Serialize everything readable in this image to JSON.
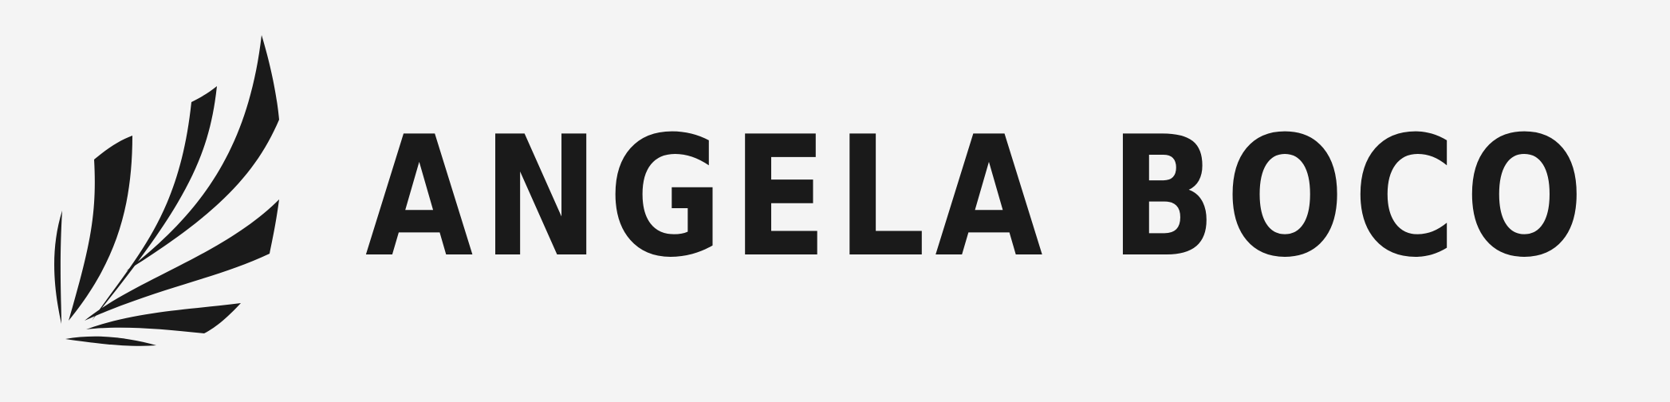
{
  "brand": {
    "name": "ANGELA BOCO",
    "color": "#1a1a1a",
    "background": "#f4f4f4",
    "mark_icon": "wing-icon"
  }
}
